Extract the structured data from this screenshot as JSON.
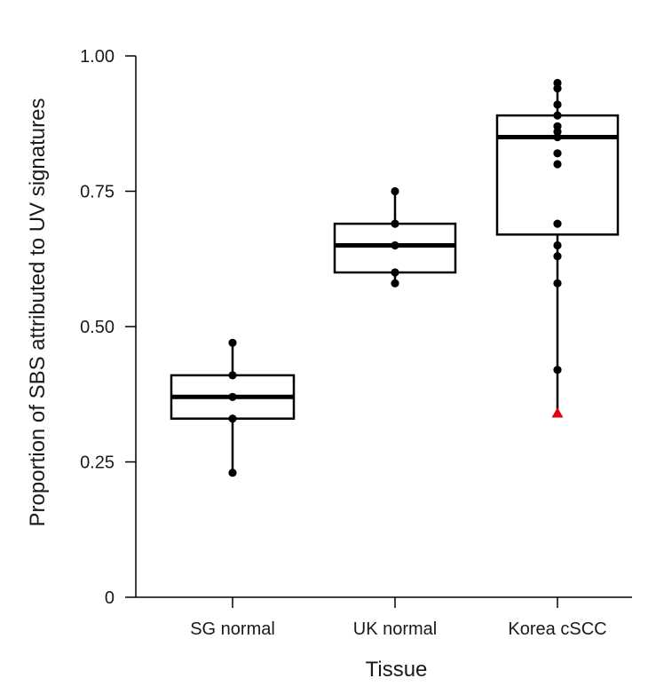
{
  "chart_data": {
    "type": "box",
    "xlabel": "Tissue",
    "ylabel": "Proportion of SBS attributed to UV signatures",
    "ylim": [
      0,
      1.0
    ],
    "yticks": [
      0,
      0.25,
      0.5,
      0.75,
      1.0
    ],
    "ytick_labels": [
      "0",
      "0.25",
      "0.50",
      "0.75",
      "1.00"
    ],
    "grid": false,
    "categories": [
      "SG normal",
      "UK normal",
      "Korea cSCC"
    ],
    "boxes": [
      {
        "category": "SG normal",
        "q1": 0.33,
        "median": 0.37,
        "q3": 0.41,
        "whisker_low": 0.23,
        "whisker_high": 0.47
      },
      {
        "category": "UK normal",
        "q1": 0.6,
        "median": 0.65,
        "q3": 0.69,
        "whisker_low": 0.58,
        "whisker_high": 0.75
      },
      {
        "category": "Korea cSCC",
        "q1": 0.67,
        "median": 0.85,
        "q3": 0.89,
        "whisker_low": 0.34,
        "whisker_high": 0.95
      }
    ],
    "points": [
      {
        "category": "SG normal",
        "values": [
          0.23,
          0.33,
          0.37,
          0.41,
          0.47
        ]
      },
      {
        "category": "UK normal",
        "values": [
          0.58,
          0.6,
          0.65,
          0.69,
          0.75
        ]
      },
      {
        "category": "Korea cSCC",
        "values": [
          0.42,
          0.58,
          0.63,
          0.65,
          0.69,
          0.8,
          0.82,
          0.85,
          0.86,
          0.87,
          0.89,
          0.91,
          0.94,
          0.95
        ]
      }
    ],
    "highlighted_points": [
      {
        "category": "Korea cSCC",
        "value": 0.34,
        "marker": "triangle",
        "color": "#e0000f"
      }
    ],
    "colors": {
      "box_edge": "#000000",
      "point": "#000000",
      "highlight": "#e0000f"
    }
  }
}
